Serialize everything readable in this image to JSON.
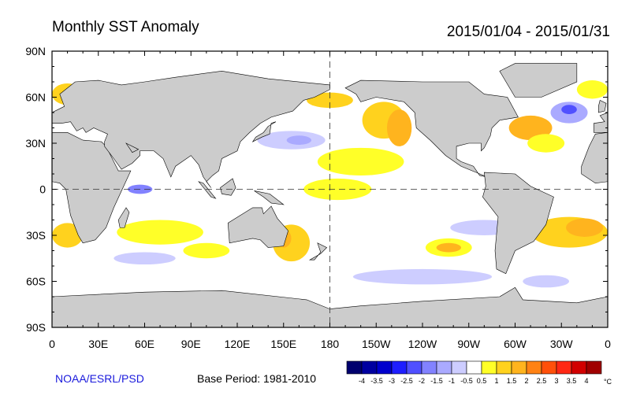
{
  "header": {
    "title": "Monthly SST Anomaly",
    "date_range": "2015/01/04 - 2015/01/31"
  },
  "footer": {
    "credit": "NOAA/ESRL/PSD",
    "base_period": "Base Period: 1981-2010"
  },
  "axes": {
    "x_ticks": [
      {
        "lon": 0,
        "label": "0"
      },
      {
        "lon": 30,
        "label": "30E"
      },
      {
        "lon": 60,
        "label": "60E"
      },
      {
        "lon": 90,
        "label": "90E"
      },
      {
        "lon": 120,
        "label": "120E"
      },
      {
        "lon": 150,
        "label": "150E"
      },
      {
        "lon": 180,
        "label": "180"
      },
      {
        "lon": 210,
        "label": "150W"
      },
      {
        "lon": 240,
        "label": "120W"
      },
      {
        "lon": 270,
        "label": "90W"
      },
      {
        "lon": 300,
        "label": "60W"
      },
      {
        "lon": 330,
        "label": "30W"
      },
      {
        "lon": 360,
        "label": "0"
      }
    ],
    "y_ticks": [
      {
        "lat": 90,
        "label": "90N"
      },
      {
        "lat": 60,
        "label": "60N"
      },
      {
        "lat": 30,
        "label": "30N"
      },
      {
        "lat": 0,
        "label": "0"
      },
      {
        "lat": -30,
        "label": "30S"
      },
      {
        "lat": -60,
        "label": "60S"
      },
      {
        "lat": -90,
        "label": "90S"
      }
    ]
  },
  "colorbar": {
    "unit": "°C",
    "colors": [
      "#00006e",
      "#0000a0",
      "#0000cd",
      "#1e1eff",
      "#5050ff",
      "#8282ff",
      "#aaaaff",
      "#cdcdff",
      "#ffffff",
      "#ffff28",
      "#ffd21e",
      "#ffb41e",
      "#ff8214",
      "#ff500a",
      "#ff2814",
      "#d20000",
      "#a00000"
    ],
    "labels": [
      "-4",
      "-3.5",
      "-3",
      "-2.5",
      "-2",
      "-1.5",
      "-1",
      "-0.5",
      "0.5",
      "1",
      "1.5",
      "2",
      "2.5",
      "3",
      "3.5",
      "4"
    ]
  },
  "land_color": "#cccccc",
  "anomaly_regions": [
    {
      "lon": 200,
      "lat": 18,
      "rlon": 28,
      "rlat": 9,
      "level": 9
    },
    {
      "lon": 185,
      "lat": 0,
      "rlon": 22,
      "rlat": 7,
      "level": 9
    },
    {
      "lon": 215,
      "lat": 45,
      "rlon": 14,
      "rlat": 12,
      "level": 10
    },
    {
      "lon": 225,
      "lat": 40,
      "rlon": 8,
      "rlat": 12,
      "level": 11
    },
    {
      "lon": 180,
      "lat": 58,
      "rlon": 15,
      "rlat": 5,
      "level": 10
    },
    {
      "lon": 155,
      "lat": -35,
      "rlon": 12,
      "rlat": 12,
      "level": 10
    },
    {
      "lon": 150,
      "lat": -32,
      "rlon": 5,
      "rlat": 6,
      "level": 11
    },
    {
      "lon": 335,
      "lat": -28,
      "rlon": 25,
      "rlat": 10,
      "level": 10
    },
    {
      "lon": 345,
      "lat": -25,
      "rlon": 12,
      "rlat": 6,
      "level": 11
    },
    {
      "lon": 70,
      "lat": -28,
      "rlon": 28,
      "rlat": 8,
      "level": 9
    },
    {
      "lon": 10,
      "lat": -30,
      "rlon": 10,
      "rlat": 8,
      "level": 10
    },
    {
      "lon": 100,
      "lat": -40,
      "rlon": 15,
      "rlat": 5,
      "level": 9
    },
    {
      "lon": 310,
      "lat": 40,
      "rlon": 14,
      "rlat": 8,
      "level": 11
    },
    {
      "lon": 320,
      "lat": 30,
      "rlon": 12,
      "rlat": 6,
      "level": 9
    },
    {
      "lon": 257,
      "lat": -38,
      "rlon": 15,
      "rlat": 6,
      "level": 9
    },
    {
      "lon": 257,
      "lat": -38,
      "rlon": 8,
      "rlat": 3,
      "level": 11
    },
    {
      "lon": 10,
      "lat": 62,
      "rlon": 10,
      "rlat": 7,
      "level": 10
    },
    {
      "lon": 350,
      "lat": 65,
      "rlon": 10,
      "rlat": 6,
      "level": 9
    },
    {
      "lon": 155,
      "lat": 32,
      "rlon": 22,
      "rlat": 6,
      "level": 7
    },
    {
      "lon": 160,
      "lat": 32,
      "rlon": 8,
      "rlat": 3,
      "level": 6
    },
    {
      "lon": 335,
      "lat": 50,
      "rlon": 12,
      "rlat": 7,
      "level": 6
    },
    {
      "lon": 335,
      "lat": 52,
      "rlon": 5,
      "rlat": 3,
      "level": 4
    },
    {
      "lon": 57,
      "lat": 0,
      "rlon": 8,
      "rlat": 3,
      "level": 5
    },
    {
      "lon": 240,
      "lat": -57,
      "rlon": 45,
      "rlat": 5,
      "level": 7
    },
    {
      "lon": 280,
      "lat": -25,
      "rlon": 22,
      "rlat": 5,
      "level": 7
    },
    {
      "lon": 60,
      "lat": -45,
      "rlon": 20,
      "rlat": 4,
      "level": 7
    },
    {
      "lon": 320,
      "lat": -60,
      "rlon": 15,
      "rlat": 4,
      "level": 7
    }
  ]
}
